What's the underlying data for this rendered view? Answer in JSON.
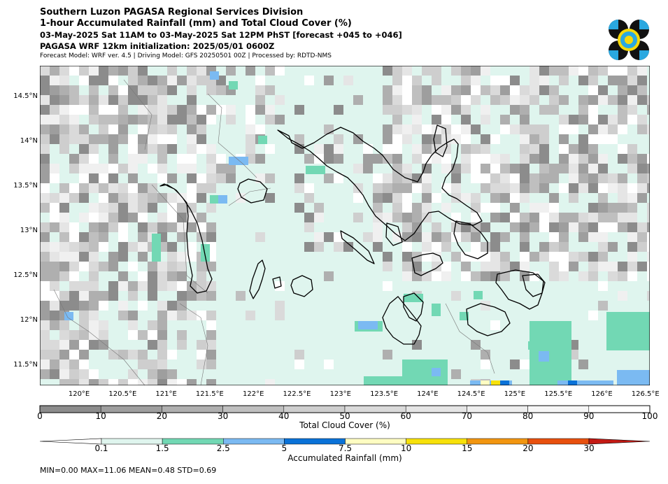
{
  "header": {
    "line1": "Southern Luzon PAGASA Regional Services Division",
    "line2": "1-hour Accumulated Rainfall (mm) and Total Cloud Cover (%)",
    "line3": "03-May-2025 Sat 11AM to 03-May-2025 Sat 12PM PhST [forecast +045 to +046]",
    "line4": "PAGASA WRF 12km initialization: 2025/05/01 0600Z",
    "line5": "Forecast Model: WRF ver. 4.5 | Driving Model: GFS 20250501 00Z | Processed by: RDTD-NMS"
  },
  "logo": {
    "icon": "pagasa-logo-icon",
    "colors": [
      "#111111",
      "#2aa8e0",
      "#f5d90a"
    ]
  },
  "map": {
    "lon_range": [
      119.55,
      126.55
    ],
    "lat_range": [
      11.28,
      14.85
    ],
    "x_ticks": [
      {
        "value": 120.0,
        "label": "120°E"
      },
      {
        "value": 120.5,
        "label": "120.5°E"
      },
      {
        "value": 121.0,
        "label": "121°E"
      },
      {
        "value": 121.5,
        "label": "121.5°E"
      },
      {
        "value": 122.0,
        "label": "122°E"
      },
      {
        "value": 122.5,
        "label": "122.5°E"
      },
      {
        "value": 123.0,
        "label": "123°E"
      },
      {
        "value": 123.5,
        "label": "123.5°E"
      },
      {
        "value": 124.0,
        "label": "124°E"
      },
      {
        "value": 124.5,
        "label": "124.5°E"
      },
      {
        "value": 125.0,
        "label": "125°E"
      },
      {
        "value": 125.5,
        "label": "125.5°E"
      },
      {
        "value": 126.0,
        "label": "126°E"
      },
      {
        "value": 126.5,
        "label": "126.5°E"
      }
    ],
    "y_ticks": [
      {
        "value": 14.5,
        "label": "14.5°N"
      },
      {
        "value": 14.0,
        "label": "14°N"
      },
      {
        "value": 13.5,
        "label": "13.5°N"
      },
      {
        "value": 13.0,
        "label": "13°N"
      },
      {
        "value": 12.5,
        "label": "12.5°N"
      },
      {
        "value": 12.0,
        "label": "12°N"
      },
      {
        "value": 11.5,
        "label": "11.5°N"
      }
    ],
    "colors": {
      "background_rain": "#dff5ee",
      "coast": "#000000",
      "province": "#777777"
    }
  },
  "cloud_colorbar": {
    "title": "Total Cloud Cover (%)",
    "ticks": [
      "0",
      "10",
      "20",
      "30",
      "40",
      "50",
      "60",
      "70",
      "80",
      "90",
      "100"
    ],
    "colors": [
      "#8c8c8c",
      "#9e9e9e",
      "#afafaf",
      "#bfbfbf",
      "#cecece",
      "#dadada",
      "#e5e5e5",
      "#eeeeee",
      "#f6f6f6",
      "#ffffff"
    ]
  },
  "rain_colorbar": {
    "title": "Accumulated Rainfall (mm)",
    "ticks": [
      "0.1",
      "1.5",
      "2.5",
      "5",
      "7.5",
      "10",
      "15",
      "20",
      "30"
    ],
    "colors": [
      "#ffffff",
      "#dff5ee",
      "#72d8b4",
      "#7bbaf2",
      "#0a72d8",
      "#fffdc2",
      "#f7e10a",
      "#f29610",
      "#e8500e",
      "#c41a14"
    ]
  },
  "stats": "MIN=0.00   MAX=11.06   MEAN=0.48   STD=0.69"
}
